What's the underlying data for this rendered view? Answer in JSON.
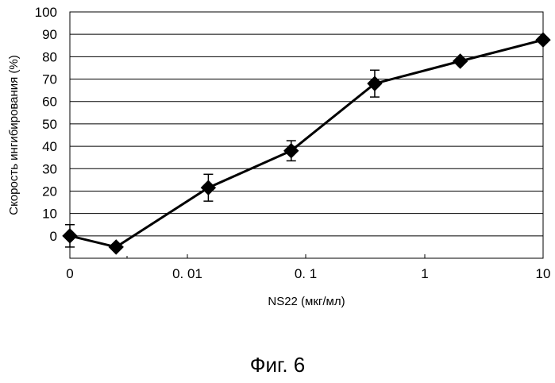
{
  "figure": {
    "caption": "Фиг. 6"
  },
  "chart_data": {
    "type": "line",
    "xlabel": "NS22 (мкг/мл)",
    "ylabel": "Скорость ингибирования (%)",
    "ylim": [
      -10,
      100
    ],
    "yticks": [
      0,
      10,
      20,
      30,
      40,
      50,
      60,
      70,
      80,
      90,
      100
    ],
    "xticks": [
      "0",
      "0. 01",
      "0. 1",
      "1",
      "10"
    ],
    "x_scale": "log (with 0 at left)",
    "grid": "horizontal",
    "legend": "none",
    "colors": {
      "line": "#000000",
      "marker": "#000000",
      "grid": "#000000",
      "background": "#ffffff"
    },
    "series": [
      {
        "marker": "diamond",
        "points": [
          {
            "x": 0,
            "y": 0,
            "err": 5
          },
          {
            "x": 0.0025,
            "y": -5,
            "err": 0
          },
          {
            "x": 0.015,
            "y": 21.5,
            "err": 6
          },
          {
            "x": 0.075,
            "y": 38,
            "err": 4.5
          },
          {
            "x": 0.38,
            "y": 68,
            "err": 6
          },
          {
            "x": 2,
            "y": 78,
            "err": 0
          },
          {
            "x": 10,
            "y": 87.5,
            "err": 0
          }
        ]
      }
    ]
  }
}
